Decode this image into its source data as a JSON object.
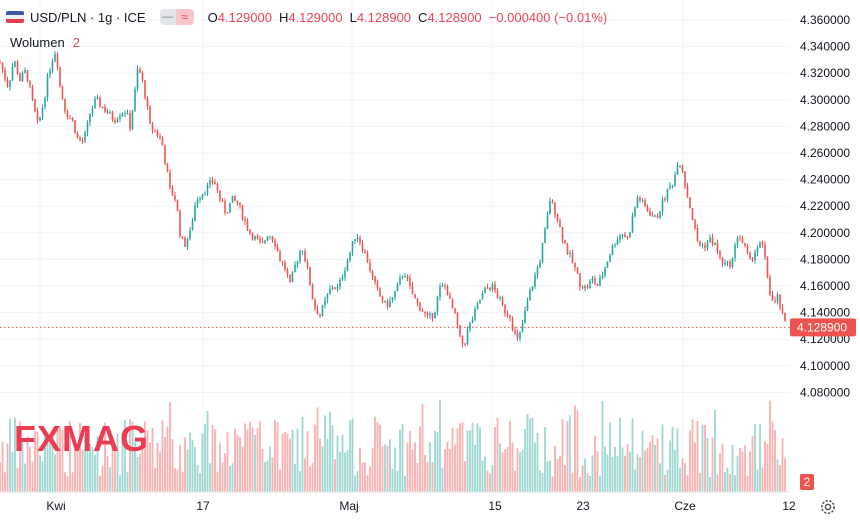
{
  "legend": {
    "symbol": "USD/PLN · 1g · ICE",
    "pill_left_icon": "minus-icon",
    "pill_right_icon": "wave-icon",
    "o_label": "O",
    "o_value": "4.129000",
    "h_label": "H",
    "h_value": "4.129000",
    "l_label": "L",
    "l_value": "4.128900",
    "c_label": "C",
    "c_value": "4.128900",
    "change": "−0.000400 (−0.01%)"
  },
  "volume": {
    "label": "Wolumen",
    "value": "2"
  },
  "watermark": "FXMAG",
  "price_tag": "4.128900",
  "volume_tag": "2",
  "colors": {
    "up": "#26a69a",
    "down": "#ef5350",
    "price_line": "#ef5350",
    "watermark": "#ed3b52",
    "grid": "#f0f3fa",
    "axis_text": "#131722"
  },
  "chart_data": {
    "type": "candlestick",
    "symbol": "USD/PLN",
    "interval": "1g",
    "y_ticks": [
      "4.360000",
      "4.340000",
      "4.320000",
      "4.300000",
      "4.280000",
      "4.260000",
      "4.240000",
      "4.220000",
      "4.200000",
      "4.180000",
      "4.160000",
      "4.140000",
      "4.120000",
      "4.100000",
      "4.080000"
    ],
    "ylim": [
      4.076,
      4.364
    ],
    "x_ticks": [
      "Kwi",
      "17",
      "Maj",
      "15",
      "23",
      "Cze",
      "12"
    ],
    "last_price": 4.1289,
    "grid": true,
    "price_path": [
      [
        0,
        4.328
      ],
      [
        8,
        4.31
      ],
      [
        14,
        4.33
      ],
      [
        20,
        4.315
      ],
      [
        26,
        4.322
      ],
      [
        32,
        4.3
      ],
      [
        38,
        4.28
      ],
      [
        44,
        4.3
      ],
      [
        48,
        4.318
      ],
      [
        52,
        4.33
      ],
      [
        56,
        4.338
      ],
      [
        60,
        4.31
      ],
      [
        66,
        4.29
      ],
      [
        72,
        4.285
      ],
      [
        78,
        4.27
      ],
      [
        82,
        4.268
      ],
      [
        86,
        4.275
      ],
      [
        90,
        4.29
      ],
      [
        96,
        4.3
      ],
      [
        102,
        4.295
      ],
      [
        108,
        4.29
      ],
      [
        114,
        4.285
      ],
      [
        120,
        4.29
      ],
      [
        126,
        4.292
      ],
      [
        130,
        4.28
      ],
      [
        134,
        4.3
      ],
      [
        138,
        4.325
      ],
      [
        142,
        4.315
      ],
      [
        146,
        4.3
      ],
      [
        150,
        4.28
      ],
      [
        156,
        4.276
      ],
      [
        162,
        4.268
      ],
      [
        166,
        4.25
      ],
      [
        170,
        4.232
      ],
      [
        176,
        4.225
      ],
      [
        180,
        4.2
      ],
      [
        184,
        4.19
      ],
      [
        190,
        4.2
      ],
      [
        196,
        4.225
      ],
      [
        202,
        4.23
      ],
      [
        208,
        4.235
      ],
      [
        214,
        4.24
      ],
      [
        220,
        4.225
      ],
      [
        226,
        4.215
      ],
      [
        232,
        4.225
      ],
      [
        238,
        4.222
      ],
      [
        244,
        4.21
      ],
      [
        250,
        4.2
      ],
      [
        256,
        4.195
      ],
      [
        262,
        4.19
      ],
      [
        268,
        4.2
      ],
      [
        274,
        4.195
      ],
      [
        280,
        4.18
      ],
      [
        286,
        4.172
      ],
      [
        290,
        4.16
      ],
      [
        296,
        4.178
      ],
      [
        302,
        4.19
      ],
      [
        308,
        4.17
      ],
      [
        314,
        4.145
      ],
      [
        320,
        4.138
      ],
      [
        326,
        4.15
      ],
      [
        332,
        4.16
      ],
      [
        338,
        4.158
      ],
      [
        344,
        4.172
      ],
      [
        350,
        4.185
      ],
      [
        356,
        4.2
      ],
      [
        362,
        4.19
      ],
      [
        368,
        4.178
      ],
      [
        374,
        4.162
      ],
      [
        380,
        4.152
      ],
      [
        386,
        4.145
      ],
      [
        392,
        4.15
      ],
      [
        398,
        4.16
      ],
      [
        404,
        4.172
      ],
      [
        410,
        4.158
      ],
      [
        416,
        4.148
      ],
      [
        422,
        4.142
      ],
      [
        428,
        4.135
      ],
      [
        434,
        4.14
      ],
      [
        440,
        4.158
      ],
      [
        446,
        4.16
      ],
      [
        450,
        4.148
      ],
      [
        456,
        4.135
      ],
      [
        460,
        4.12
      ],
      [
        464,
        4.115
      ],
      [
        468,
        4.128
      ],
      [
        474,
        4.138
      ],
      [
        480,
        4.15
      ],
      [
        486,
        4.158
      ],
      [
        492,
        4.16
      ],
      [
        498,
        4.152
      ],
      [
        504,
        4.142
      ],
      [
        510,
        4.138
      ],
      [
        514,
        4.125
      ],
      [
        518,
        4.118
      ],
      [
        522,
        4.13
      ],
      [
        528,
        4.15
      ],
      [
        534,
        4.165
      ],
      [
        540,
        4.18
      ],
      [
        546,
        4.205
      ],
      [
        550,
        4.225
      ],
      [
        556,
        4.215
      ],
      [
        562,
        4.198
      ],
      [
        568,
        4.185
      ],
      [
        574,
        4.175
      ],
      [
        580,
        4.162
      ],
      [
        586,
        4.158
      ],
      [
        592,
        4.165
      ],
      [
        598,
        4.16
      ],
      [
        604,
        4.172
      ],
      [
        610,
        4.185
      ],
      [
        616,
        4.195
      ],
      [
        622,
        4.2
      ],
      [
        628,
        4.195
      ],
      [
        632,
        4.21
      ],
      [
        638,
        4.228
      ],
      [
        644,
        4.22
      ],
      [
        650,
        4.215
      ],
      [
        656,
        4.21
      ],
      [
        662,
        4.222
      ],
      [
        668,
        4.232
      ],
      [
        674,
        4.24
      ],
      [
        678,
        4.255
      ],
      [
        682,
        4.25
      ],
      [
        686,
        4.232
      ],
      [
        690,
        4.22
      ],
      [
        694,
        4.205
      ],
      [
        698,
        4.192
      ],
      [
        704,
        4.19
      ],
      [
        710,
        4.195
      ],
      [
        716,
        4.19
      ],
      [
        720,
        4.18
      ],
      [
        726,
        4.175
      ],
      [
        732,
        4.178
      ],
      [
        738,
        4.2
      ],
      [
        744,
        4.19
      ],
      [
        750,
        4.178
      ],
      [
        756,
        4.188
      ],
      [
        762,
        4.192
      ],
      [
        766,
        4.175
      ],
      [
        770,
        4.155
      ],
      [
        774,
        4.145
      ],
      [
        778,
        4.152
      ],
      [
        782,
        4.138
      ],
      [
        786,
        4.129
      ]
    ]
  }
}
